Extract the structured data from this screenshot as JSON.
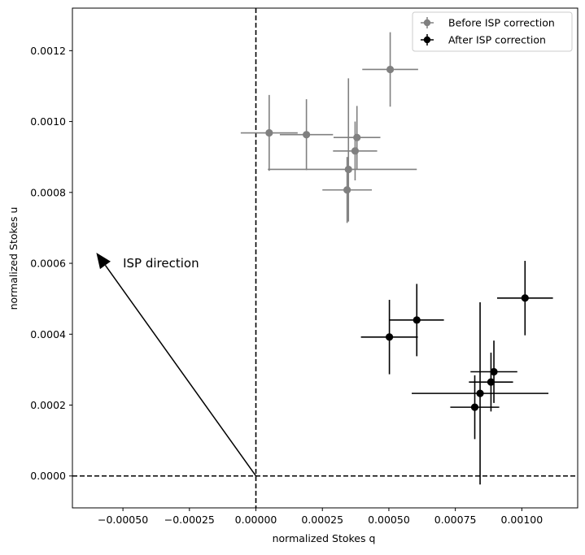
{
  "chart_data": {
    "type": "scatter",
    "title": "",
    "xlabel": "normalized Stokes q",
    "ylabel": "normalized Stokes u",
    "xlim": [
      -0.00069,
      0.00121
    ],
    "ylim": [
      -9e-05,
      0.00132
    ],
    "grid": false,
    "legend_position": "top-right",
    "x_tick_labels": [
      "−0.00050",
      "−0.00025",
      "0.00000",
      "0.00025",
      "0.00050",
      "0.00075",
      "0.00100"
    ],
    "x_tick_values": [
      -0.0005,
      -0.00025,
      0.0,
      0.00025,
      0.0005,
      0.00075,
      0.001
    ],
    "y_tick_labels": [
      "0.0000",
      "0.0002",
      "0.0004",
      "0.0006",
      "0.0008",
      "0.0010",
      "0.0012"
    ],
    "y_tick_values": [
      0.0,
      0.0002,
      0.0004,
      0.0006,
      0.0008,
      0.001,
      0.0012
    ],
    "reference_lines": [
      {
        "orientation": "vertical",
        "value": 0.0,
        "style": "dashed",
        "color": "#000000"
      },
      {
        "orientation": "horizontal",
        "value": 0.0,
        "style": "dashed",
        "color": "#000000"
      }
    ],
    "series": [
      {
        "name": "Before ISP correction",
        "color": "#808080",
        "points": [
          {
            "x": 0.000505,
            "y": 0.001147,
            "xerr_low": 0.000105,
            "xerr_high": 0.000105,
            "yerr_low": 0.000105,
            "yerr_high": 0.000105
          },
          {
            "x": 5e-05,
            "y": 0.000968,
            "xerr_low": 0.000107,
            "xerr_high": 0.000107,
            "yerr_low": 0.000107,
            "yerr_high": 0.000107
          },
          {
            "x": 0.00019,
            "y": 0.000963,
            "xerr_low": 0.0001,
            "xerr_high": 0.0001,
            "yerr_low": 0.0001,
            "yerr_high": 0.0001
          },
          {
            "x": 0.00038,
            "y": 0.000955,
            "xerr_low": 8.8e-05,
            "xerr_high": 8.8e-05,
            "yerr_low": 8.9e-05,
            "yerr_high": 8.9e-05
          },
          {
            "x": 0.000373,
            "y": 0.000917,
            "xerr_low": 8.3e-05,
            "xerr_high": 8.3e-05,
            "yerr_low": 8.3e-05,
            "yerr_high": 8.3e-05
          },
          {
            "x": 0.000348,
            "y": 0.000865,
            "xerr_low": 0.000303,
            "xerr_high": 0.000257,
            "yerr_low": 0.000147,
            "yerr_high": 0.000257
          },
          {
            "x": 0.000343,
            "y": 0.000807,
            "xerr_low": 9.3e-05,
            "xerr_high": 9.3e-05,
            "yerr_low": 9.3e-05,
            "yerr_high": 9.3e-05
          }
        ]
      },
      {
        "name": "After ISP correction",
        "color": "#000000",
        "points": [
          {
            "x": 0.001012,
            "y": 0.000502,
            "xerr_low": 0.000105,
            "xerr_high": 0.000105,
            "yerr_low": 0.000105,
            "yerr_high": 0.000105
          },
          {
            "x": 0.000605,
            "y": 0.00044,
            "xerr_low": 0.000102,
            "xerr_high": 0.000102,
            "yerr_low": 0.000102,
            "yerr_high": 0.000102
          },
          {
            "x": 0.000502,
            "y": 0.000392,
            "xerr_low": 0.000107,
            "xerr_high": 0.000107,
            "yerr_low": 0.000105,
            "yerr_high": 0.000105
          },
          {
            "x": 0.000895,
            "y": 0.000294,
            "xerr_low": 8.8e-05,
            "xerr_high": 8.8e-05,
            "yerr_low": 8.8e-05,
            "yerr_high": 8.8e-05
          },
          {
            "x": 0.000884,
            "y": 0.000265,
            "xerr_low": 8.3e-05,
            "xerr_high": 8.3e-05,
            "yerr_low": 8.3e-05,
            "yerr_high": 8.3e-05
          },
          {
            "x": 0.000843,
            "y": 0.000233,
            "xerr_low": 0.000257,
            "xerr_high": 0.000257,
            "yerr_low": 0.000257,
            "yerr_high": 0.000257
          },
          {
            "x": 0.000823,
            "y": 0.000194,
            "xerr_low": 9.2e-05,
            "xerr_high": 9.2e-05,
            "yerr_low": 9e-05,
            "yerr_high": 9e-05
          }
        ]
      }
    ],
    "annotations": [
      {
        "type": "arrow",
        "text": "ISP direction",
        "from_x": 0.0,
        "from_y": 0.0,
        "to_x": -0.0006,
        "to_y": 0.00063,
        "text_x": -0.0005,
        "text_y": 0.0006
      }
    ]
  }
}
